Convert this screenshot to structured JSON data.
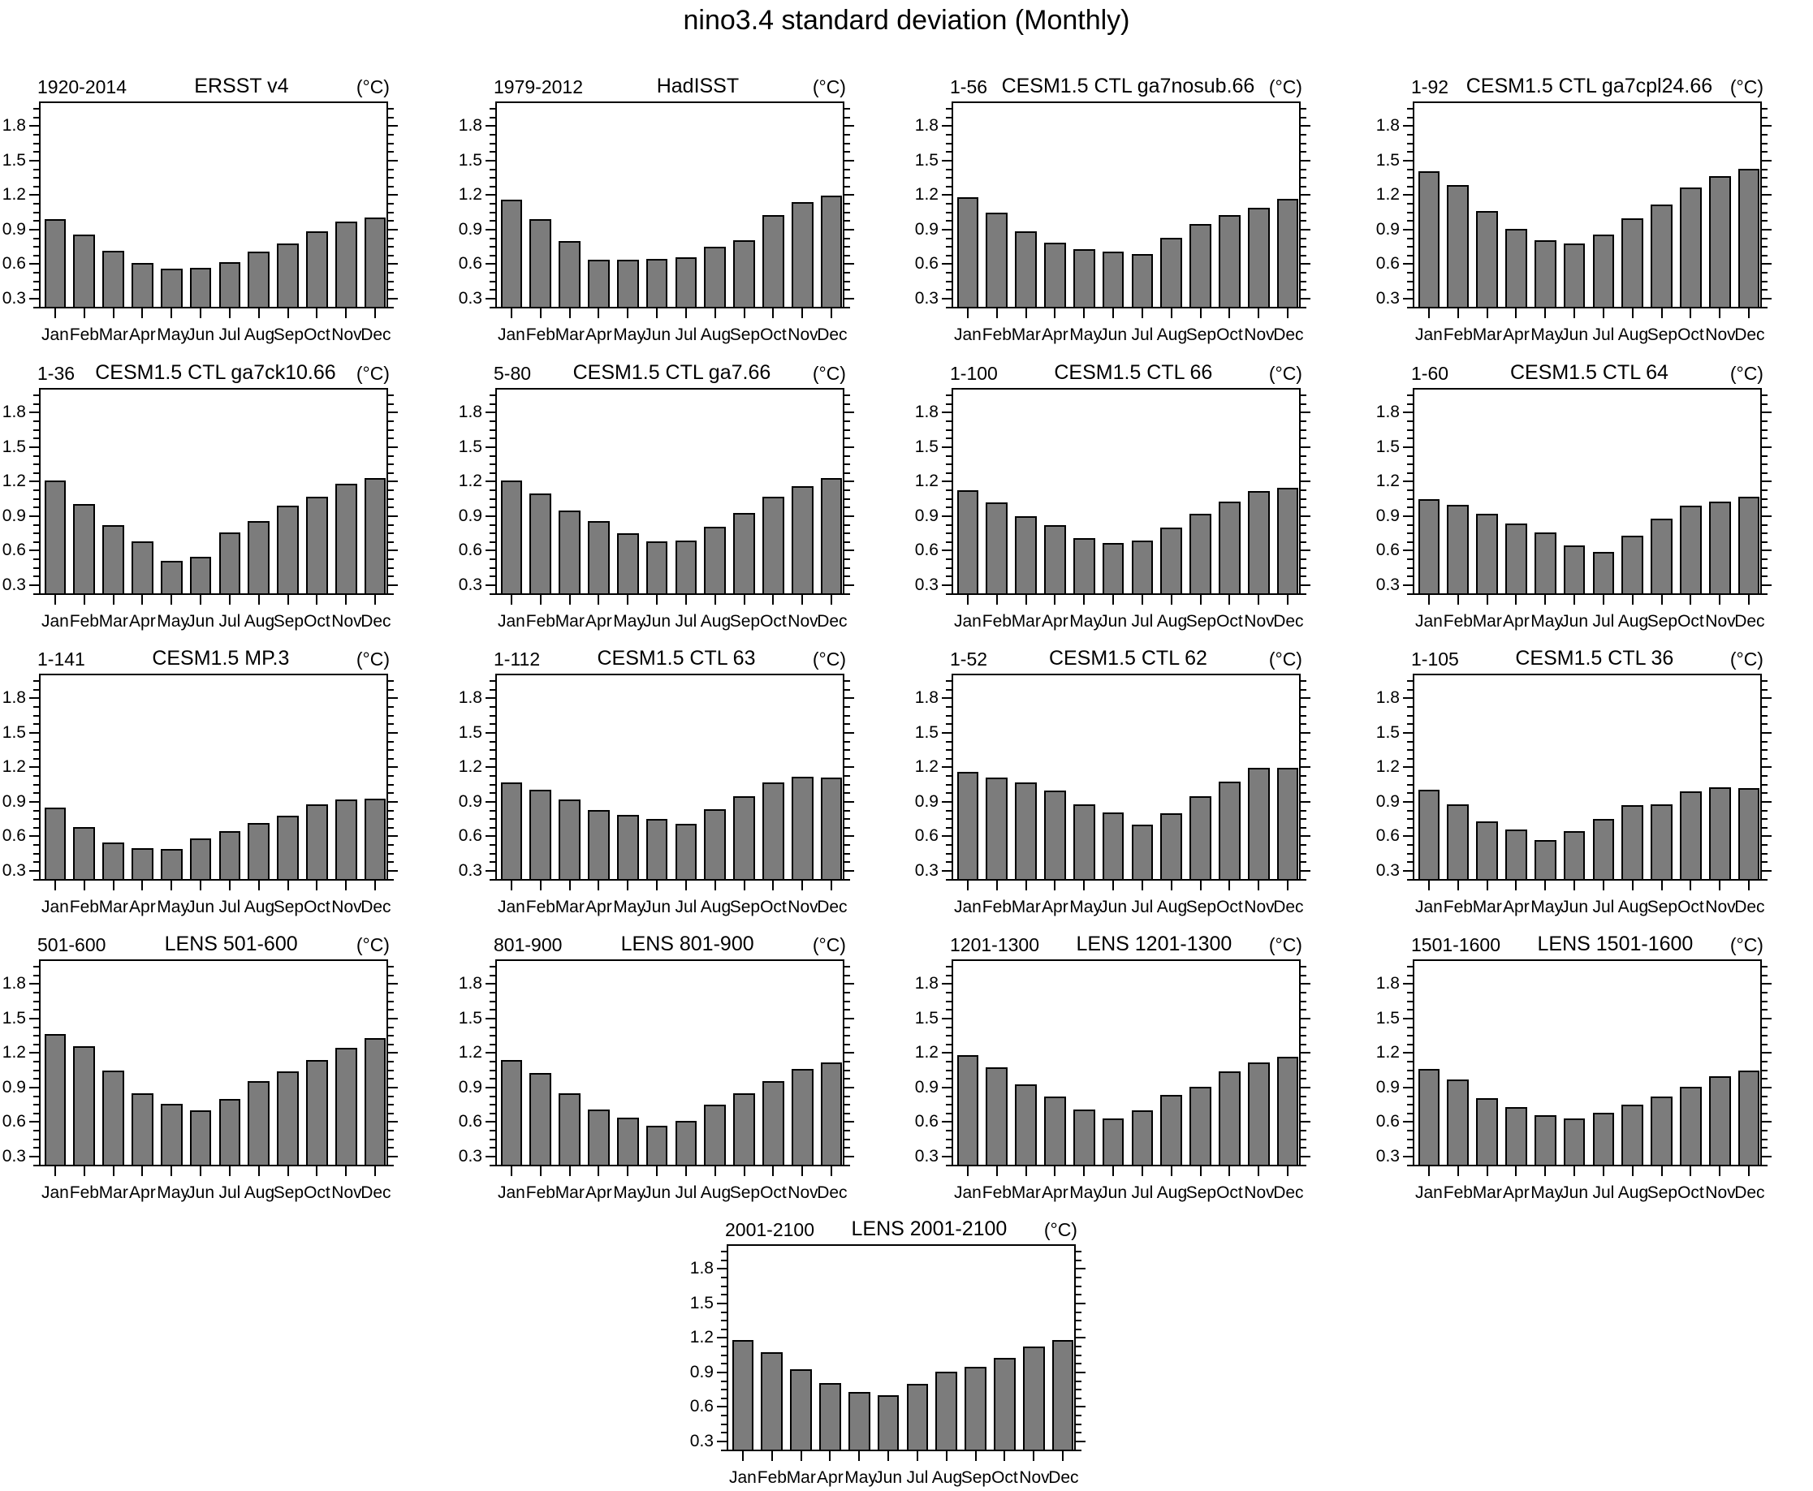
{
  "page_title": "nino3.4 standard deviation (Monthly)",
  "chart_data": {
    "type": "bar",
    "title": "nino3.4 standard deviation (Monthly)",
    "unit_label": "(°C)",
    "categories": [
      "Jan",
      "Feb",
      "Mar",
      "Apr",
      "May",
      "Jun",
      "Jul",
      "Aug",
      "Sep",
      "Oct",
      "Nov",
      "Dec"
    ],
    "yticks": [
      0.3,
      0.6,
      0.9,
      1.2,
      1.5,
      1.8
    ],
    "ylim": [
      0.2,
      2.0
    ],
    "grid": false,
    "bar_color": "#7c7c7c",
    "bar_edge_color": "#000000",
    "panels": [
      {
        "period": "1920-2014",
        "title": "ERSST v4",
        "values": [
          0.96,
          0.83,
          0.69,
          0.58,
          0.53,
          0.54,
          0.59,
          0.68,
          0.75,
          0.86,
          0.94,
          0.98
        ]
      },
      {
        "period": "1979-2012",
        "title": "HadISST",
        "values": [
          1.13,
          0.96,
          0.77,
          0.61,
          0.61,
          0.62,
          0.63,
          0.72,
          0.78,
          1.0,
          1.11,
          1.17
        ]
      },
      {
        "period": "1-56",
        "title": "CESM1.5 CTL ga7nosub.66",
        "values": [
          1.15,
          1.02,
          0.86,
          0.76,
          0.7,
          0.68,
          0.66,
          0.8,
          0.92,
          1.0,
          1.06,
          1.14
        ]
      },
      {
        "period": "1-92",
        "title": "CESM1.5 CTL ga7cpl24.66",
        "values": [
          1.38,
          1.26,
          1.03,
          0.88,
          0.78,
          0.75,
          0.83,
          0.97,
          1.09,
          1.24,
          1.34,
          1.4
        ]
      },
      {
        "period": "1-36",
        "title": "CESM1.5 CTL ga7ck10.66",
        "values": [
          1.18,
          0.98,
          0.79,
          0.65,
          0.48,
          0.52,
          0.73,
          0.83,
          0.96,
          1.04,
          1.15,
          1.2
        ]
      },
      {
        "period": "5-80",
        "title": "CESM1.5 CTL ga7.66",
        "values": [
          1.18,
          1.07,
          0.92,
          0.83,
          0.72,
          0.65,
          0.66,
          0.78,
          0.9,
          1.04,
          1.13,
          1.2
        ]
      },
      {
        "period": "1-100",
        "title": "CESM1.5 CTL 66",
        "values": [
          1.1,
          0.99,
          0.87,
          0.79,
          0.68,
          0.64,
          0.66,
          0.77,
          0.89,
          1.0,
          1.09,
          1.12
        ]
      },
      {
        "period": "1-60",
        "title": "CESM1.5 CTL 64",
        "values": [
          1.02,
          0.97,
          0.89,
          0.81,
          0.73,
          0.62,
          0.56,
          0.7,
          0.85,
          0.96,
          1.0,
          1.04
        ]
      },
      {
        "period": "1-141",
        "title": "CESM1.5 MP.3",
        "values": [
          0.82,
          0.65,
          0.52,
          0.47,
          0.46,
          0.55,
          0.62,
          0.69,
          0.75,
          0.85,
          0.89,
          0.9
        ]
      },
      {
        "period": "1-112",
        "title": "CESM1.5 CTL 63",
        "values": [
          1.04,
          0.98,
          0.89,
          0.8,
          0.76,
          0.72,
          0.68,
          0.81,
          0.92,
          1.04,
          1.09,
          1.08
        ]
      },
      {
        "period": "1-52",
        "title": "CESM1.5 CTL 62",
        "values": [
          1.13,
          1.08,
          1.04,
          0.97,
          0.85,
          0.78,
          0.67,
          0.77,
          0.92,
          1.05,
          1.17,
          1.17
        ]
      },
      {
        "period": "1-105",
        "title": "CESM1.5 CTL 36",
        "values": [
          0.98,
          0.85,
          0.7,
          0.63,
          0.54,
          0.62,
          0.72,
          0.84,
          0.85,
          0.96,
          1.0,
          0.99
        ]
      },
      {
        "period": "501-600",
        "title": "LENS 501-600",
        "values": [
          1.34,
          1.23,
          1.02,
          0.82,
          0.73,
          0.67,
          0.77,
          0.93,
          1.01,
          1.11,
          1.22,
          1.3
        ]
      },
      {
        "period": "801-900",
        "title": "LENS 801-900",
        "values": [
          1.11,
          1.0,
          0.82,
          0.68,
          0.61,
          0.54,
          0.58,
          0.72,
          0.82,
          0.93,
          1.03,
          1.09
        ]
      },
      {
        "period": "1201-1300",
        "title": "LENS 1201-1300",
        "values": [
          1.15,
          1.05,
          0.9,
          0.79,
          0.68,
          0.6,
          0.67,
          0.81,
          0.88,
          1.01,
          1.09,
          1.14
        ]
      },
      {
        "period": "1501-1600",
        "title": "LENS 1501-1600",
        "values": [
          1.03,
          0.94,
          0.78,
          0.7,
          0.63,
          0.6,
          0.65,
          0.72,
          0.79,
          0.88,
          0.97,
          1.02
        ]
      },
      {
        "period": "2001-2100",
        "title": "LENS 2001-2100",
        "values": [
          1.15,
          1.05,
          0.9,
          0.78,
          0.7,
          0.67,
          0.77,
          0.88,
          0.92,
          1.0,
          1.1,
          1.15
        ]
      }
    ]
  }
}
